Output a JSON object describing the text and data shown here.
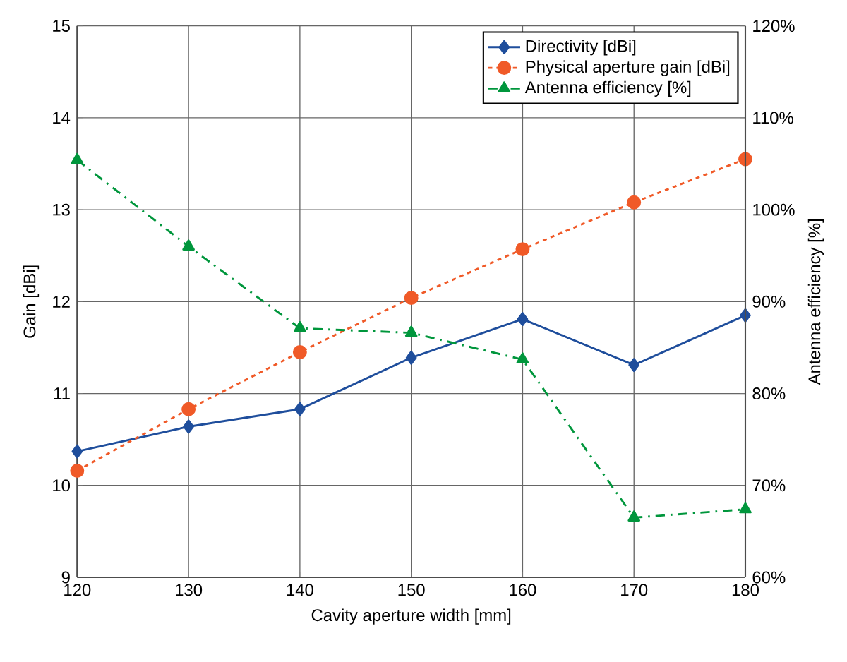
{
  "chart_data": {
    "type": "line",
    "xlabel": "Cavity aperture  width [mm]",
    "ylabel": "Gain [dBi]",
    "y2label": "Antenna efficiency [%]",
    "x": [
      120,
      130,
      140,
      150,
      160,
      170,
      180
    ],
    "xlim": [
      120,
      180
    ],
    "xticks": [
      120,
      130,
      140,
      150,
      160,
      170,
      180
    ],
    "ylim": [
      9,
      15
    ],
    "yticks": [
      9,
      10,
      11,
      12,
      13,
      14,
      15
    ],
    "y2lim": [
      60,
      120
    ],
    "y2ticks": [
      {
        "value": 60,
        "label": "60%"
      },
      {
        "value": 70,
        "label": "70%"
      },
      {
        "value": 80,
        "label": "80%"
      },
      {
        "value": 90,
        "label": "90%"
      },
      {
        "value": 100,
        "label": "100%"
      },
      {
        "value": 110,
        "label": "110%"
      },
      {
        "value": 120,
        "label": "120%"
      }
    ],
    "grid": true,
    "legend": "top right",
    "series": [
      {
        "name": "Directivity [dBi]",
        "color": "#1f4e9c",
        "marker": "diamond",
        "line_style": "solid",
        "values": [
          10.37,
          10.64,
          10.83,
          11.39,
          11.81,
          11.31,
          11.85
        ]
      },
      {
        "name": "Physical aperture gain [dBi]",
        "color": "#f05a28",
        "marker": "circle",
        "line_style": "dotted",
        "values": [
          10.16,
          10.83,
          11.45,
          12.04,
          12.57,
          13.08,
          13.55
        ]
      },
      {
        "name": "Antenna efficiency [%]",
        "color": "#00963c",
        "marker": "triangle",
        "line_style": "dashdot",
        "axis": "y2",
        "values": [
          105.4,
          96.0,
          87.1,
          86.6,
          83.7,
          66.5,
          67.4
        ]
      }
    ]
  }
}
